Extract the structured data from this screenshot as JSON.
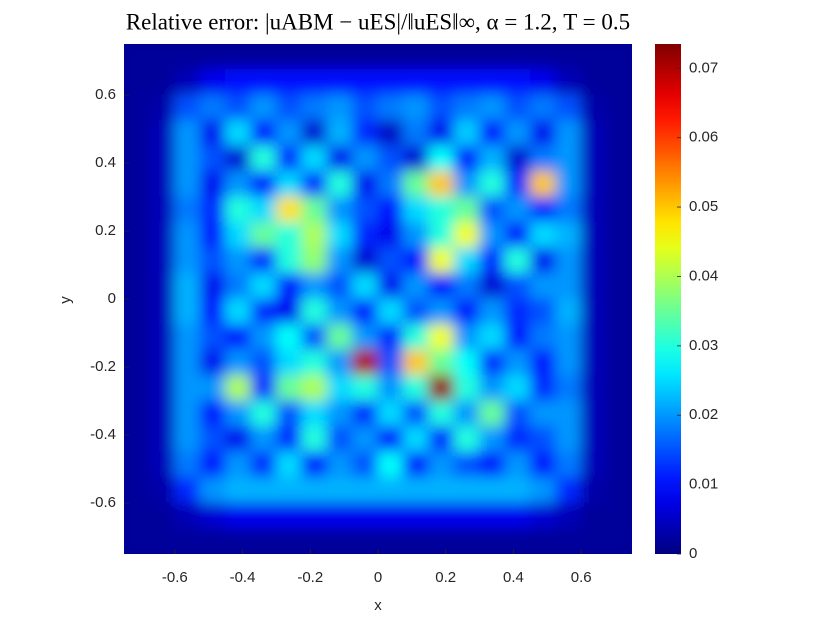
{
  "chart_data": {
    "type": "heatmap",
    "title": "Relative error: |uABM − uES|/‖uES‖∞, α = 1.2, T = 0.5",
    "x_label": "x",
    "y_label": "y",
    "xlim": [
      -0.75,
      0.75
    ],
    "ylim": [
      -0.75,
      0.75
    ],
    "xticks": [
      -0.6,
      -0.4,
      -0.2,
      0,
      0.2,
      0.4,
      0.6
    ],
    "yticks": [
      -0.6,
      -0.4,
      -0.2,
      0,
      0.2,
      0.4,
      0.6
    ],
    "colormap": "jet",
    "clim": [
      0,
      0.0735
    ],
    "cticks": [
      0,
      0.01,
      0.02,
      0.03,
      0.04,
      0.05,
      0.06,
      0.07
    ],
    "x": [
      -0.7125,
      -0.6375,
      -0.5625,
      -0.4875,
      -0.4125,
      -0.3375,
      -0.2625,
      -0.1875,
      -0.1125,
      -0.0375,
      0.0375,
      0.1125,
      0.1875,
      0.2625,
      0.3375,
      0.4125,
      0.4875,
      0.5625,
      0.6375,
      0.7125
    ],
    "y": [
      0.7125,
      0.6375,
      0.5625,
      0.4875,
      0.4125,
      0.3375,
      0.2625,
      0.1875,
      0.1125,
      0.0375,
      -0.0375,
      -0.1125,
      -0.1875,
      -0.2625,
      -0.3375,
      -0.4125,
      -0.4875,
      -0.5625,
      -0.6375,
      -0.7125
    ],
    "z": [
      [
        0.002,
        0.002,
        0.002,
        0.002,
        0.002,
        0.002,
        0.002,
        0.002,
        0.002,
        0.002,
        0.002,
        0.002,
        0.002,
        0.002,
        0.002,
        0.002,
        0.002,
        0.002,
        0.002,
        0.002
      ],
      [
        0.002,
        0.002,
        0.004,
        0.008,
        0.01,
        0.01,
        0.01,
        0.01,
        0.01,
        0.01,
        0.01,
        0.01,
        0.01,
        0.01,
        0.01,
        0.01,
        0.008,
        0.004,
        0.002,
        0.002
      ],
      [
        0.002,
        0.003,
        0.015,
        0.018,
        0.015,
        0.02,
        0.015,
        0.018,
        0.02,
        0.015,
        0.018,
        0.02,
        0.015,
        0.018,
        0.02,
        0.015,
        0.018,
        0.015,
        0.003,
        0.002
      ],
      [
        0.002,
        0.004,
        0.02,
        0.008,
        0.025,
        0.01,
        0.02,
        0.006,
        0.022,
        0.012,
        0.005,
        0.018,
        0.008,
        0.024,
        0.01,
        0.02,
        0.008,
        0.02,
        0.004,
        0.002
      ],
      [
        0.002,
        0.004,
        0.02,
        0.015,
        0.006,
        0.03,
        0.012,
        0.025,
        0.008,
        0.02,
        0.015,
        0.006,
        0.028,
        0.01,
        0.022,
        0.006,
        0.018,
        0.02,
        0.004,
        0.002
      ],
      [
        0.002,
        0.004,
        0.02,
        0.008,
        0.02,
        0.01,
        0.025,
        0.012,
        0.03,
        0.008,
        0.018,
        0.035,
        0.05,
        0.02,
        0.03,
        0.012,
        0.05,
        0.02,
        0.004,
        0.002
      ],
      [
        0.002,
        0.004,
        0.018,
        0.012,
        0.03,
        0.025,
        0.048,
        0.035,
        0.02,
        0.015,
        0.01,
        0.025,
        0.03,
        0.035,
        0.015,
        0.02,
        0.012,
        0.018,
        0.004,
        0.002
      ],
      [
        0.002,
        0.004,
        0.02,
        0.01,
        0.025,
        0.035,
        0.03,
        0.04,
        0.025,
        0.012,
        0.008,
        0.02,
        0.03,
        0.045,
        0.02,
        0.01,
        0.025,
        0.022,
        0.004,
        0.002
      ],
      [
        0.002,
        0.004,
        0.02,
        0.015,
        0.02,
        0.012,
        0.03,
        0.038,
        0.02,
        0.006,
        0.015,
        0.01,
        0.045,
        0.025,
        0.012,
        0.03,
        0.008,
        0.02,
        0.004,
        0.002
      ],
      [
        0.002,
        0.004,
        0.022,
        0.008,
        0.018,
        0.025,
        0.01,
        0.02,
        0.015,
        0.025,
        0.008,
        0.02,
        0.01,
        0.018,
        0.006,
        0.015,
        0.02,
        0.02,
        0.004,
        0.002
      ],
      [
        0.002,
        0.004,
        0.022,
        0.01,
        0.025,
        0.012,
        0.008,
        0.03,
        0.02,
        0.01,
        0.025,
        0.015,
        0.02,
        0.01,
        0.02,
        0.012,
        0.015,
        0.022,
        0.004,
        0.002
      ],
      [
        0.002,
        0.004,
        0.02,
        0.015,
        0.01,
        0.02,
        0.028,
        0.015,
        0.035,
        0.02,
        0.012,
        0.03,
        0.045,
        0.02,
        0.025,
        0.01,
        0.018,
        0.02,
        0.004,
        0.002
      ],
      [
        0.002,
        0.004,
        0.02,
        0.008,
        0.02,
        0.015,
        0.025,
        0.03,
        0.02,
        0.07,
        0.015,
        0.05,
        0.035,
        0.028,
        0.012,
        0.02,
        0.01,
        0.02,
        0.004,
        0.002
      ],
      [
        0.002,
        0.004,
        0.02,
        0.02,
        0.04,
        0.012,
        0.035,
        0.04,
        0.025,
        0.03,
        0.02,
        0.03,
        0.072,
        0.03,
        0.02,
        0.025,
        0.012,
        0.018,
        0.004,
        0.002
      ],
      [
        0.002,
        0.004,
        0.02,
        0.01,
        0.02,
        0.03,
        0.015,
        0.025,
        0.02,
        0.012,
        0.025,
        0.015,
        0.03,
        0.02,
        0.035,
        0.015,
        0.02,
        0.02,
        0.004,
        0.002
      ],
      [
        0.002,
        0.004,
        0.02,
        0.015,
        0.008,
        0.02,
        0.012,
        0.03,
        0.015,
        0.02,
        0.01,
        0.025,
        0.012,
        0.03,
        0.02,
        0.012,
        0.015,
        0.02,
        0.004,
        0.002
      ],
      [
        0.002,
        0.004,
        0.018,
        0.01,
        0.02,
        0.012,
        0.025,
        0.01,
        0.02,
        0.015,
        0.028,
        0.01,
        0.02,
        0.015,
        0.01,
        0.02,
        0.01,
        0.018,
        0.004,
        0.002
      ],
      [
        0.002,
        0.003,
        0.012,
        0.02,
        0.022,
        0.022,
        0.022,
        0.022,
        0.022,
        0.022,
        0.022,
        0.022,
        0.022,
        0.022,
        0.022,
        0.022,
        0.02,
        0.012,
        0.003,
        0.002
      ],
      [
        0.002,
        0.002,
        0.004,
        0.006,
        0.008,
        0.008,
        0.008,
        0.008,
        0.008,
        0.008,
        0.008,
        0.008,
        0.008,
        0.008,
        0.008,
        0.008,
        0.006,
        0.004,
        0.002,
        0.002
      ],
      [
        0.002,
        0.002,
        0.002,
        0.002,
        0.002,
        0.002,
        0.002,
        0.002,
        0.002,
        0.002,
        0.002,
        0.002,
        0.002,
        0.002,
        0.002,
        0.002,
        0.002,
        0.002,
        0.002,
        0.002
      ]
    ]
  }
}
